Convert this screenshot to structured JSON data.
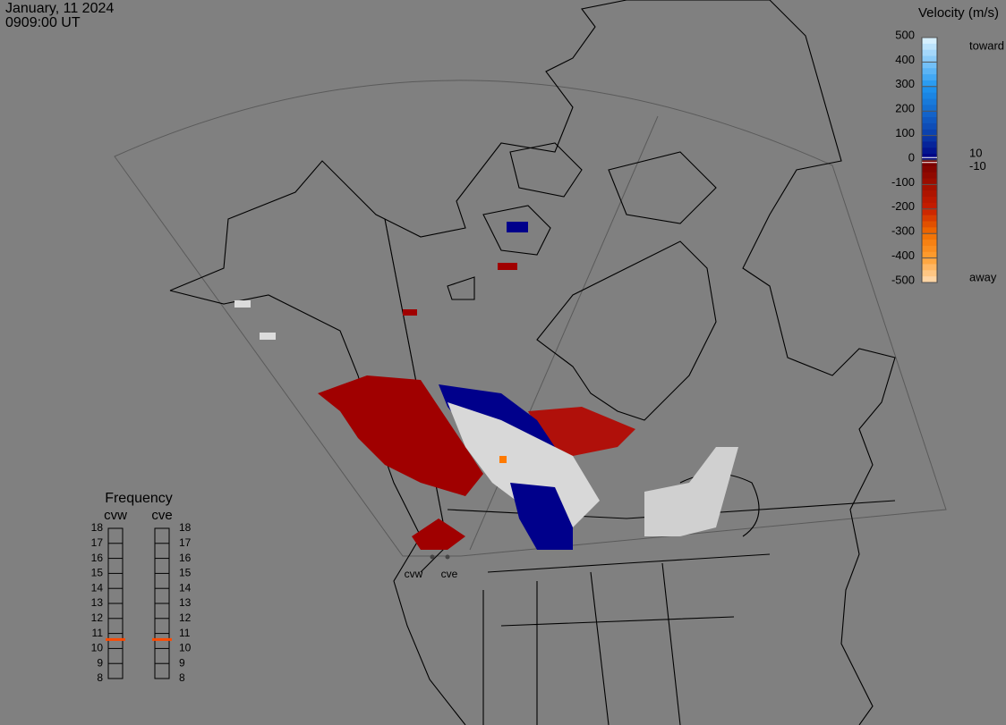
{
  "header": {
    "date": "January, 11 2024",
    "time": "0909:00 UT"
  },
  "velocity_scale": {
    "title": "Velocity (m/s)",
    "lim": [
      -500,
      500
    ],
    "ticks": [
      500,
      400,
      300,
      200,
      100,
      0,
      -100,
      -200,
      -300,
      -400,
      -500
    ],
    "inner_ticks": [
      10,
      -10
    ],
    "top_label": "toward",
    "bottom_label": "away"
  },
  "frequency": {
    "title": "Frequency",
    "lim": [
      8,
      18
    ],
    "ticks": [
      18,
      17,
      16,
      15,
      14,
      13,
      12,
      11,
      10,
      9,
      8
    ],
    "radars": [
      {
        "name": "cvw",
        "value": 10.6
      },
      {
        "name": "cve",
        "value": 10.6
      }
    ]
  }
}
